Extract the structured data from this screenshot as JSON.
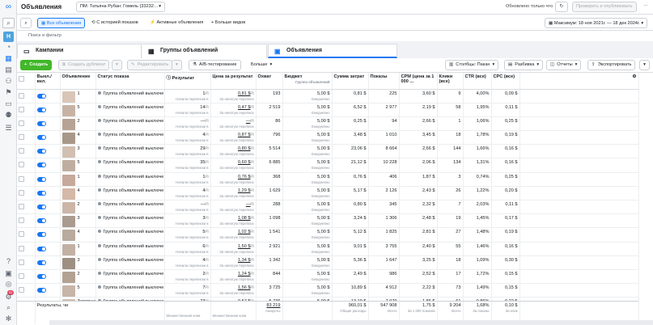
{
  "leftbar": {
    "avatar": "Н",
    "badge": "52"
  },
  "topbar": {
    "title": "Объявления",
    "account": "ПМ: Татьяна Рубан: Гомель (33232…",
    "status": "Обновлено только что",
    "publish": "Проверить и опубликовать"
  },
  "filters": {
    "campaigns_btn": "Все объявления",
    "history": "С историей показов",
    "active": "Активные объявления",
    "more": "Больше видов",
    "date_range": "Максимум: 18 ноя 2021г. — 18 дек 2024г."
  },
  "search": {
    "placeholder": "Поиск и фильтр"
  },
  "tabs": [
    "Кампании",
    "Группы объявлений",
    "Объявления"
  ],
  "actions": {
    "create": "Создать",
    "duplicate": "Создать дубликат",
    "edit": "Редактировать",
    "ab": "A/B-тестирование",
    "more": "Больше",
    "columns": "Столбцы: Пакан",
    "breakdown": "Разбивка",
    "reports": "Отчеты",
    "export": "Экспортировать"
  },
  "columns": [
    "Выкл./ вкл.",
    "Объявление",
    "Статус показа",
    "Результат",
    "Цена за результат",
    "Охват",
    "Бюджет",
    "Сумма затрат",
    "Показы",
    "CPM (цена за 1 000 ...",
    "Клики (все)",
    "CTR (все)",
    "CPC (все)"
  ],
  "labels": {
    "status": "Группа объявлений выключе",
    "result_sub": "Начала переписки в",
    "cpr_sub": "За начатую переписк",
    "budget": "5,00 $",
    "budget_sub": "Ежедневно",
    "budget_head_sub": "Группа объявлений",
    "result_sup": "[2]"
  },
  "rows": [
    {
      "ad": "1",
      "result": "1",
      "cpr": "0,81 $",
      "reach": "193",
      "spend": "0,81 $",
      "impr": "225",
      "cpm": "3,60 $",
      "clicks": "9",
      "ctr": "4,00%",
      "cpc": "0,09 $",
      "color": "#d9c6b8"
    },
    {
      "ad": "5",
      "result": "14",
      "cpr": "0,47 $",
      "reach": "2 519",
      "spend": "6,52 $",
      "impr": "2 977",
      "cpm": "2,19 $",
      "clicks": "58",
      "ctr": "1,95%",
      "cpc": "0,11 $",
      "color": "#c8b2a4"
    },
    {
      "ad": "2",
      "result": "—",
      "cpr": "—",
      "reach": "86",
      "spend": "0,25 $",
      "impr": "94",
      "cpm": "2,66 $",
      "clicks": "1",
      "ctr": "1,06%",
      "cpc": "0,25 $",
      "color": "#b7a394"
    },
    {
      "ad": "4",
      "result": "4",
      "cpr": "0,87 $",
      "reach": "796",
      "spend": "3,48 $",
      "impr": "1 010",
      "cpm": "3,45 $",
      "clicks": "18",
      "ctr": "1,78%",
      "cpc": "0,19 $",
      "color": "#a89888"
    },
    {
      "ad": "3",
      "result": "29",
      "cpr": "0,80 $",
      "reach": "5 514",
      "spend": "23,06 $",
      "impr": "8 664",
      "cpm": "2,66 $",
      "clicks": "144",
      "ctr": "1,66%",
      "cpc": "0,16 $",
      "color": "#d1bfb1"
    },
    {
      "ad": "5",
      "result": "35",
      "cpr": "0,60 $",
      "reach": "6 885",
      "spend": "21,12 $",
      "impr": "10 228",
      "cpm": "2,06 $",
      "clicks": "134",
      "ctr": "1,31%",
      "cpc": "0,16 $",
      "color": "#bfae9f"
    },
    {
      "ad": "1",
      "result": "1",
      "cpr": "0,76 $",
      "reach": "368",
      "spend": "0,76 $",
      "impr": "406",
      "cpm": "1,87 $",
      "clicks": "3",
      "ctr": "0,74%",
      "cpc": "0,25 $",
      "color": "#c6a99b"
    },
    {
      "ad": "4",
      "result": "4",
      "cpr": "1,29 $",
      "reach": "1 629",
      "spend": "5,17 $",
      "impr": "2 126",
      "cpm": "2,43 $",
      "clicks": "26",
      "ctr": "1,22%",
      "cpc": "0,20 $",
      "color": "#d4b8a8"
    },
    {
      "ad": "2",
      "result": "—",
      "cpr": "—",
      "reach": "288",
      "spend": "0,80 $",
      "impr": "345",
      "cpm": "2,32 $",
      "clicks": "7",
      "ctr": "2,03%",
      "cpc": "0,11 $",
      "color": "#cbb6a8"
    },
    {
      "ad": "3",
      "result": "3",
      "cpr": "1,08 $",
      "reach": "1 098",
      "spend": "3,24 $",
      "impr": "1 306",
      "cpm": "2,48 $",
      "clicks": "19",
      "ctr": "1,45%",
      "cpc": "0,17 $",
      "color": "#a99b8e"
    },
    {
      "ad": "4",
      "result": "5",
      "cpr": "1,02 $",
      "reach": "1 541",
      "spend": "5,12 $",
      "impr": "1 825",
      "cpm": "2,81 $",
      "clicks": "27",
      "ctr": "1,48%",
      "cpc": "0,19 $",
      "color": "#b8aa9c"
    },
    {
      "ad": "1",
      "result": "6",
      "cpr": "1,50 $",
      "reach": "2 921",
      "spend": "9,01 $",
      "impr": "3 755",
      "cpm": "2,40 $",
      "clicks": "55",
      "ctr": "1,46%",
      "cpc": "0,16 $",
      "color": "#c2b0a3"
    },
    {
      "ad": "3",
      "result": "4",
      "cpr": "1,34 $",
      "reach": "1 342",
      "spend": "5,36 $",
      "impr": "1 647",
      "cpm": "3,25 $",
      "clicks": "18",
      "ctr": "1,09%",
      "cpc": "0,30 $",
      "color": "#9e8f83"
    },
    {
      "ad": "2",
      "result": "2",
      "cpr": "1,24 $",
      "reach": "844",
      "spend": "2,49 $",
      "impr": "986",
      "cpm": "2,52 $",
      "clicks": "17",
      "ctr": "1,72%",
      "cpc": "0,15 $",
      "color": "#b3a192"
    },
    {
      "ad": "5",
      "result": "7",
      "cpr": "1,56 $",
      "reach": "3 725",
      "spend": "10,89 $",
      "impr": "4 912",
      "cpm": "2,22 $",
      "clicks": "73",
      "ctr": "1,49%",
      "cpc": "0,15 $",
      "color": "#c7b5a7"
    },
    {
      "ad": "Завершена",
      "result": "23",
      "cpr": "0,57 $",
      "reach": "5 736",
      "spend": "13,19 $",
      "impr": "7 079",
      "cpm": "1,86 $",
      "clicks": "61",
      "ctr": "0,86%",
      "cpc": "0,22 $",
      "color": "#d0c0b3"
    }
  ],
  "totals": {
    "label": "Результаты, чи",
    "result_sub": "Множественная конв",
    "cpr_sub": "Множественная конв",
    "reach": "83 219",
    "reach_sub": "Аккаунты",
    "spend": "960,01 $",
    "spend_sub": "Общие расходы",
    "impr": "547 908",
    "impr_sub": "Всего",
    "cpm": "1,75 $",
    "cpm_sub": "За 1 000 показов",
    "clicks": "9 204",
    "clicks_sub": "Всего",
    "ctr": "1,68%",
    "ctr_sub": "За показы",
    "cpc": "0,10 $",
    "cpc_sub": "За клик"
  }
}
